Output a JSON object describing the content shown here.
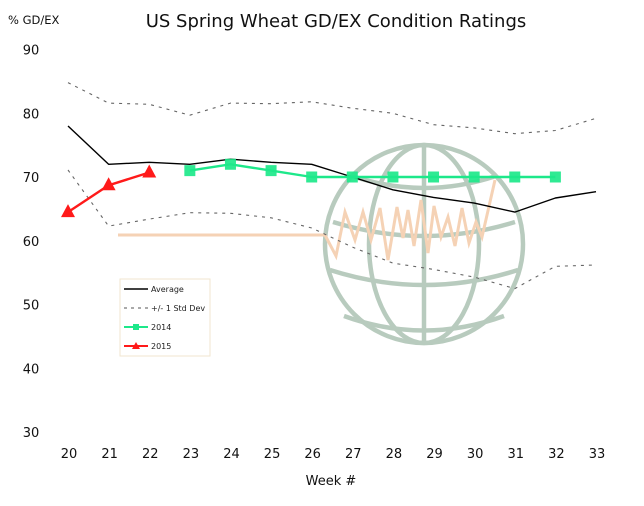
{
  "chart_data": {
    "type": "line",
    "title": "US Spring Wheat GD/EX Condition Ratings",
    "ylabel": "% GD/EX",
    "xlabel": "Week #",
    "x": [
      20,
      21,
      22,
      23,
      24,
      25,
      26,
      27,
      28,
      29,
      30,
      31,
      32,
      33
    ],
    "xlim": [
      20,
      33
    ],
    "ylim": [
      30,
      90
    ],
    "yticks": [
      30,
      40,
      50,
      60,
      70,
      80,
      90
    ],
    "grid": false,
    "legend_position": "lower-left",
    "series": [
      {
        "name": "Average",
        "style": "solid",
        "color": "#000000",
        "x": [
          20,
          21,
          22,
          23,
          24,
          25,
          26,
          27,
          28,
          29,
          30,
          31,
          32,
          33
        ],
        "values": [
          78.0,
          72.0,
          72.3,
          72.0,
          72.8,
          72.3,
          72.0,
          70.0,
          68.0,
          66.8,
          65.9,
          64.5,
          66.7,
          67.7
        ]
      },
      {
        "name": "+/- 1 Std Dev",
        "style": "dashed",
        "color": "#666666",
        "x": [
          20,
          21,
          22,
          23,
          24,
          25,
          26,
          27,
          28,
          29,
          30,
          31,
          32,
          33
        ],
        "values": [
          84.8,
          81.6,
          81.4,
          79.7,
          81.6,
          81.5,
          81.8,
          80.8,
          80.0,
          78.2,
          77.7,
          76.8,
          77.3,
          79.2
        ]
      },
      {
        "name": "+/- 1 Std Dev (lower)",
        "legend": false,
        "style": "dashed",
        "color": "#666666",
        "x": [
          20,
          21,
          22,
          23,
          24,
          25,
          26,
          27,
          28,
          29,
          30,
          31,
          32,
          33
        ],
        "values": [
          71.1,
          62.3,
          63.4,
          64.4,
          64.3,
          63.6,
          62.0,
          59.0,
          56.5,
          55.5,
          54.3,
          52.5,
          56.0,
          56.2
        ]
      },
      {
        "name": "2014",
        "style": "solid",
        "marker": "square",
        "color": "#1de88a",
        "x": [
          23,
          24,
          25,
          26,
          27,
          28,
          29,
          30,
          31,
          32
        ],
        "values": [
          71,
          72,
          71,
          70,
          70,
          70,
          70,
          70,
          70,
          70
        ]
      },
      {
        "name": "2015",
        "style": "solid",
        "marker": "triangle",
        "color": "#ff1a1a",
        "x": [
          20,
          21,
          22
        ],
        "values": [
          64.5,
          68.7,
          70.7
        ]
      }
    ],
    "legend": [
      "Average",
      "+/- 1 Std Dev",
      "2014",
      "2015"
    ]
  },
  "colors": {
    "watermark": "#b5c9bb",
    "watermark_wave": "#f5d2b5"
  }
}
